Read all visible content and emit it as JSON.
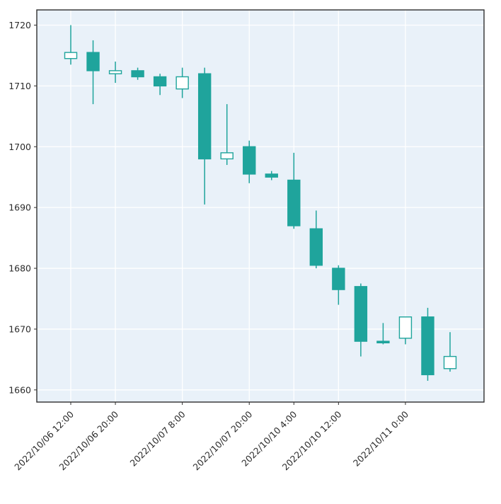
{
  "figure": {
    "background": "#ffffff",
    "plot_background": "#e9f1f9",
    "grid_color": "#ffffff",
    "spine_color": "#2f2f2f",
    "tick_label_color": "#2b2b2b",
    "up_color": "#ffffff",
    "down_color": "#1fa49c",
    "candle_border_color": "#1fa49c",
    "wick_color": "#1fa49c"
  },
  "chart_data": {
    "type": "candlestick",
    "title": "",
    "xlabel": "",
    "ylabel": "",
    "grid": true,
    "ylim": [
      1658,
      1722.5
    ],
    "yticks": [
      1660,
      1670,
      1680,
      1690,
      1700,
      1710,
      1720
    ],
    "x_tick_indices": [
      0,
      2,
      5,
      8,
      10,
      12,
      15
    ],
    "x_tick_labels": [
      "2022/10/06 12:00",
      "2022/10/06 20:00",
      "2022/10/07 8:00",
      "2022/10/07 20:00",
      "2022/10/10 4:00",
      "2022/10/10 12:00",
      "2022/10/11 0:00"
    ],
    "candles": [
      {
        "open": 1714.5,
        "high": 1720.0,
        "low": 1713.5,
        "close": 1715.5
      },
      {
        "open": 1715.5,
        "high": 1717.5,
        "low": 1707.0,
        "close": 1712.5
      },
      {
        "open": 1712.0,
        "high": 1714.0,
        "low": 1710.5,
        "close": 1712.5
      },
      {
        "open": 1712.5,
        "high": 1713.0,
        "low": 1711.0,
        "close": 1711.5
      },
      {
        "open": 1711.5,
        "high": 1712.0,
        "low": 1708.5,
        "close": 1710.0
      },
      {
        "open": 1709.5,
        "high": 1713.0,
        "low": 1708.0,
        "close": 1711.5
      },
      {
        "open": 1712.0,
        "high": 1713.0,
        "low": 1690.5,
        "close": 1698.0
      },
      {
        "open": 1698.0,
        "high": 1707.0,
        "low": 1697.0,
        "close": 1699.0
      },
      {
        "open": 1700.0,
        "high": 1701.0,
        "low": 1694.0,
        "close": 1695.5
      },
      {
        "open": 1695.5,
        "high": 1696.0,
        "low": 1694.5,
        "close": 1695.0
      },
      {
        "open": 1694.5,
        "high": 1699.0,
        "low": 1686.5,
        "close": 1687.0
      },
      {
        "open": 1686.5,
        "high": 1689.5,
        "low": 1680.0,
        "close": 1680.5
      },
      {
        "open": 1680.0,
        "high": 1680.5,
        "low": 1674.0,
        "close": 1676.5
      },
      {
        "open": 1677.0,
        "high": 1677.5,
        "low": 1665.5,
        "close": 1668.0
      },
      {
        "open": 1668.0,
        "high": 1671.0,
        "low": 1667.5,
        "close": 1668.0
      },
      {
        "open": 1668.5,
        "high": 1672.0,
        "low": 1667.5,
        "close": 1672.0
      },
      {
        "open": 1672.0,
        "high": 1673.5,
        "low": 1661.5,
        "close": 1662.5
      },
      {
        "open": 1663.5,
        "high": 1669.5,
        "low": 1663.0,
        "close": 1665.5
      }
    ]
  }
}
